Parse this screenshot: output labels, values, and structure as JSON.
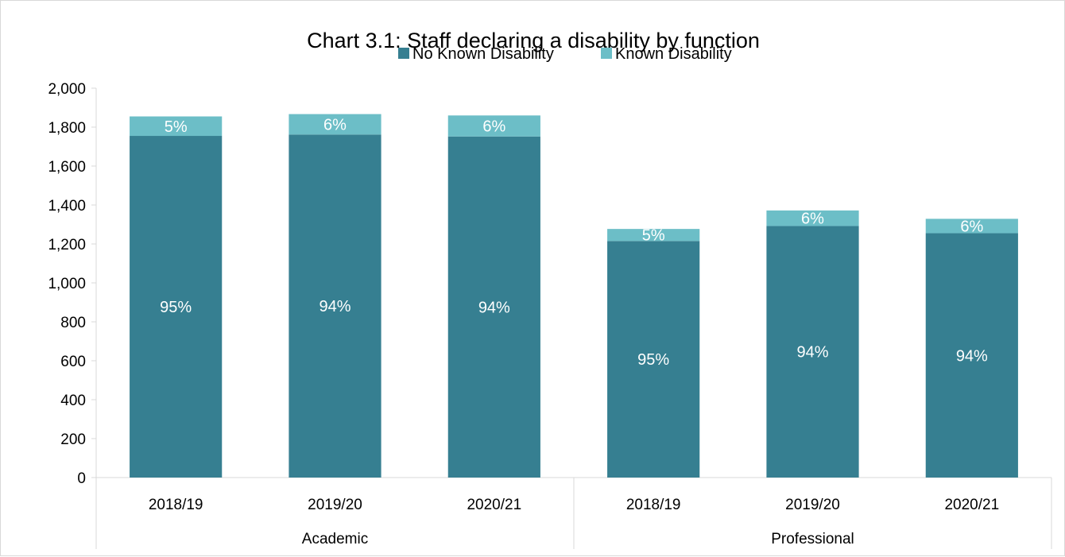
{
  "chart_data": {
    "type": "bar",
    "stacked": true,
    "title": "Chart 3.1: Staff declaring a disability by function",
    "groups": [
      {
        "label": "Academic",
        "categories": [
          "2018/19",
          "2019/20",
          "2020/21"
        ]
      },
      {
        "label": "Professional",
        "categories": [
          "2018/19",
          "2019/20",
          "2020/21"
        ]
      }
    ],
    "series": [
      {
        "name": "No Known Disability",
        "color": "#367F91",
        "values": [
          1755,
          1762,
          1752,
          1215,
          1292,
          1255
        ],
        "labels": [
          "95%",
          "94%",
          "94%",
          "95%",
          "94%",
          "94%"
        ]
      },
      {
        "name": "Known Disability",
        "color": "#6CBEC7",
        "values": [
          100,
          105,
          108,
          62,
          80,
          74
        ],
        "labels": [
          "5%",
          "6%",
          "6%",
          "5%",
          "6%",
          "6%"
        ]
      }
    ],
    "ylim": [
      0,
      2000
    ],
    "yticks": [
      "0",
      "200",
      "400",
      "600",
      "800",
      "1,000",
      "1,200",
      "1,400",
      "1,600",
      "1,800",
      "2,000"
    ],
    "ytick_values": [
      0,
      200,
      400,
      600,
      800,
      1000,
      1200,
      1400,
      1600,
      1800,
      2000
    ],
    "legend_position": "top-center",
    "grid": false
  }
}
